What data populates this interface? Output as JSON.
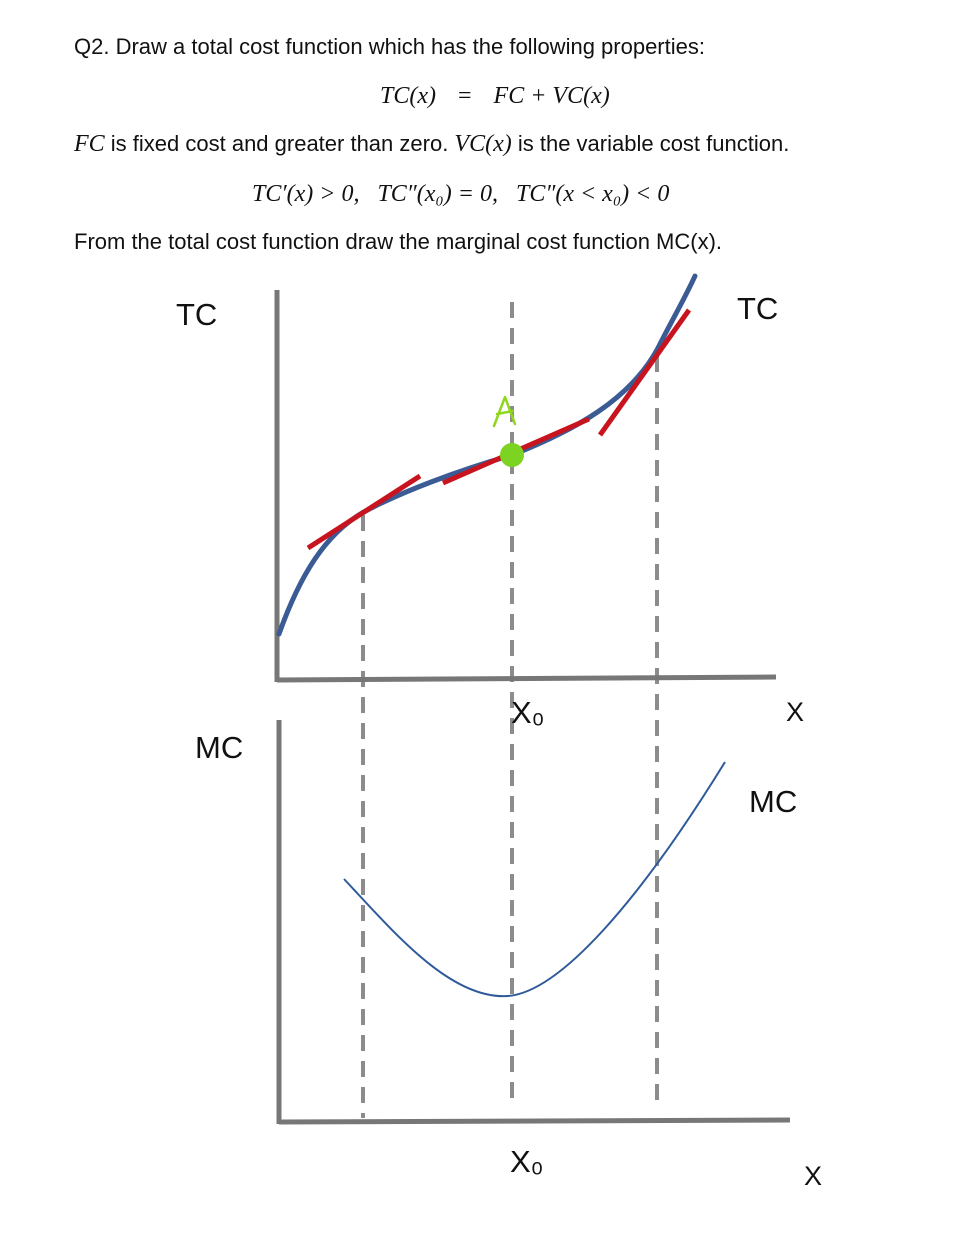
{
  "question": {
    "intro": "Q2. Draw a total cost function which has the following properties:",
    "eq1": {
      "lhs": "TC(x)",
      "op": "=",
      "rhs": "FC + VC(x)"
    },
    "def_line": {
      "fc": "FC",
      "fc_text": " is fixed cost and greater than zero. ",
      "vc": "VC(x)",
      "vc_text": " is the variable cost function."
    },
    "eq2": {
      "c1": "TC′(x) > 0,",
      "c2": "TC″(x₀) = 0,",
      "c3": "TC″(x < x₀) < 0"
    },
    "instruction": "From the total cost function draw the marginal cost function MC(x)."
  },
  "figure": {
    "colors": {
      "axis": "#777777",
      "tc_curve": "#3b5b94",
      "tangent": "#c8141e",
      "point": "#7dd321",
      "point_label": "#8fd61c",
      "mc_curve": "#2f5a9a",
      "guide": "#8c8c8c"
    },
    "top_panel": {
      "y_label": "TC",
      "curve_label": "TC",
      "x_label": "X",
      "tick_label": "X₀",
      "point_label": "A"
    },
    "bottom_panel": {
      "y_label": "MC",
      "curve_label": "MC",
      "x_label": "X",
      "tick_label": "X₀"
    }
  }
}
